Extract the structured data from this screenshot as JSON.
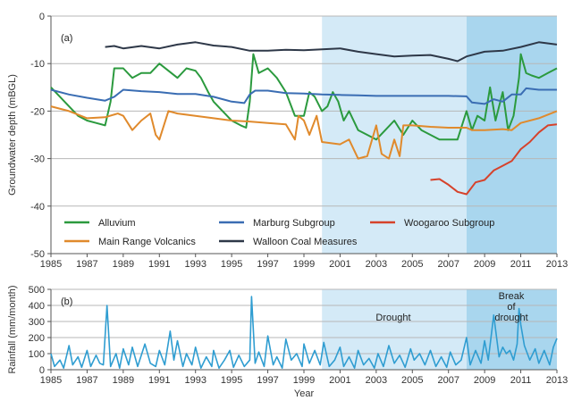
{
  "chart_data": [
    {
      "type": "line",
      "panel_label": "(a)",
      "ylabel": "Groundwater depth (mBGL)",
      "xlabel": "",
      "xlim": [
        1985,
        2013
      ],
      "ylim": [
        -50,
        0
      ],
      "x_ticks": [
        1985,
        1987,
        1989,
        1991,
        1993,
        1995,
        1997,
        1999,
        2001,
        2003,
        2005,
        2007,
        2009,
        2011,
        2013
      ],
      "y_ticks": [
        0,
        -10,
        -20,
        -30,
        -40,
        -50
      ],
      "grid": "horizontal",
      "legend_position": "bottom",
      "shaded_periods": [
        {
          "name": "drought",
          "start": 2000,
          "end": 2008,
          "color": "#d4eaf7"
        },
        {
          "name": "break-of-drought",
          "start": 2008,
          "end": 2013,
          "color": "#a9d6ee"
        }
      ],
      "series": [
        {
          "name": "Alluvium",
          "color": "#2b9a3e",
          "x": [
            1985,
            1985.5,
            1986,
            1986.5,
            1987,
            1987.5,
            1988,
            1988.3,
            1988.5,
            1989,
            1989.5,
            1990,
            1990.5,
            1991,
            1991.5,
            1992,
            1992.5,
            1993,
            1993.3,
            1993.7,
            1994,
            1994.5,
            1995,
            1995.5,
            1995.8,
            1996,
            1996.2,
            1996.5,
            1997,
            1997.5,
            1998,
            1998.5,
            1999,
            1999.3,
            1999.6,
            2000,
            2000.3,
            2000.6,
            2000.9,
            2001.2,
            2001.5,
            2002,
            2002.5,
            2003,
            2003.5,
            2004,
            2004.5,
            2005,
            2005.5,
            2006,
            2006.5,
            2007,
            2007.5,
            2008,
            2008.3,
            2008.6,
            2009,
            2009.3,
            2009.6,
            2010,
            2010.3,
            2010.6,
            2010.9,
            2011,
            2011.3,
            2011.6,
            2012,
            2012.5,
            2013
          ],
          "y": [
            -15,
            -17,
            -19,
            -21,
            -22,
            -22.5,
            -23,
            -18,
            -11,
            -11,
            -13,
            -12,
            -12,
            -10,
            -11.5,
            -13,
            -11,
            -11.5,
            -13,
            -16,
            -18,
            -20,
            -22,
            -23,
            -23.5,
            -18,
            -8,
            -12,
            -11,
            -13,
            -16,
            -21,
            -21,
            -16,
            -17,
            -20,
            -19,
            -16,
            -18,
            -22,
            -20,
            -24,
            -25,
            -26,
            -24,
            -22,
            -25,
            -22,
            -24,
            -25,
            -26,
            -26,
            -26,
            -20,
            -24,
            -21,
            -22,
            -15,
            -22,
            -16,
            -24,
            -21,
            -13,
            -8,
            -12,
            -12.5,
            -13,
            -12,
            -11
          ]
        },
        {
          "name": "Marburg Subgroup",
          "color": "#3a6db3",
          "x": [
            1985,
            1986,
            1987,
            1988,
            1988.5,
            1989,
            1990,
            1991,
            1992,
            1993,
            1994,
            1995,
            1995.7,
            1996,
            1996.3,
            1997,
            1998,
            1999,
            2000,
            2001,
            2002,
            2003,
            2004,
            2005,
            2006,
            2007,
            2008,
            2008.3,
            2009,
            2009.5,
            2010,
            2010.5,
            2011,
            2011.3,
            2012,
            2013
          ],
          "y": [
            -15.5,
            -16.5,
            -17.2,
            -17.8,
            -17,
            -15.5,
            -15.8,
            -16,
            -16.4,
            -16.4,
            -17,
            -18,
            -18.3,
            -16.5,
            -15.7,
            -15.7,
            -16.2,
            -16.3,
            -16.5,
            -16.6,
            -16.7,
            -16.8,
            -16.8,
            -16.8,
            -16.8,
            -16.8,
            -16.9,
            -18.2,
            -18.5,
            -17.5,
            -18,
            -16.5,
            -16.5,
            -15.2,
            -15.5,
            -15.5
          ]
        },
        {
          "name": "Woogaroo Subgroup",
          "color": "#d6422b",
          "x": [
            2006,
            2006.5,
            2007,
            2007.5,
            2008,
            2008.5,
            2009,
            2009.5,
            2010,
            2010.5,
            2011,
            2011.5,
            2012,
            2012.5,
            2013
          ],
          "y": [
            -34.5,
            -34.3,
            -35.5,
            -37,
            -37.5,
            -35,
            -34.5,
            -32.5,
            -31.5,
            -30.5,
            -28,
            -26.5,
            -24.5,
            -23,
            -22.8
          ]
        },
        {
          "name": "Main Range Volcanics",
          "color": "#e08a2c",
          "x": [
            1985,
            1986,
            1987,
            1988,
            1988.7,
            1989,
            1989.5,
            1990,
            1990.5,
            1990.8,
            1991,
            1991.5,
            1992,
            1993,
            1994,
            1995,
            1996,
            1997,
            1998,
            1998.5,
            1998.7,
            1999,
            1999.3,
            1999.7,
            2000,
            2001,
            2001.5,
            2002,
            2002.5,
            2003,
            2003.3,
            2003.7,
            2004,
            2004.3,
            2004.5,
            2005,
            2006,
            2007,
            2007.5,
            2008,
            2008.3,
            2009,
            2010,
            2010.5,
            2011,
            2012,
            2013
          ],
          "y": [
            -19,
            -20,
            -21.5,
            -21.3,
            -20.5,
            -21,
            -24,
            -22,
            -20.5,
            -25,
            -26,
            -20,
            -20.5,
            -21,
            -21.5,
            -22,
            -22.2,
            -22.5,
            -22.8,
            -26,
            -21,
            -22,
            -25,
            -21,
            -26.5,
            -27,
            -26,
            -30,
            -29.5,
            -23,
            -29,
            -30,
            -26,
            -29.5,
            -23,
            -23,
            -23.3,
            -23.5,
            -23.5,
            -23.5,
            -24,
            -24,
            -23.8,
            -24,
            -22.5,
            -21.5,
            -20
          ]
        },
        {
          "name": "Walloon Coal Measures",
          "color": "#2e3848",
          "x": [
            1988,
            1988.5,
            1989,
            1990,
            1991,
            1992,
            1993,
            1994,
            1995,
            1996,
            1997,
            1998,
            1999,
            2000,
            2001,
            2002,
            2003,
            2004,
            2005,
            2006,
            2007,
            2007.5,
            2008,
            2009,
            2010,
            2011,
            2012,
            2013
          ],
          "y": [
            -6.5,
            -6.3,
            -6.8,
            -6.3,
            -6.8,
            -6,
            -5.5,
            -6.2,
            -6.5,
            -7.3,
            -7.3,
            -7.1,
            -7.2,
            -7,
            -6.8,
            -7.5,
            -8,
            -8.5,
            -8.3,
            -8.2,
            -9,
            -9.5,
            -8.5,
            -7.5,
            -7.3,
            -6.5,
            -5.5,
            -6
          ]
        }
      ]
    },
    {
      "type": "line",
      "panel_label": "(b)",
      "ylabel": "Rainfall (mm/month)",
      "xlabel": "Year",
      "xlim": [
        1985,
        2013
      ],
      "ylim": [
        0,
        500
      ],
      "x_ticks": [
        1985,
        1987,
        1989,
        1991,
        1993,
        1995,
        1997,
        1999,
        2001,
        2003,
        2005,
        2007,
        2009,
        2011,
        2013
      ],
      "y_ticks": [
        0,
        100,
        200,
        300,
        400,
        500
      ],
      "grid": "horizontal",
      "annotations": [
        "Drought",
        "Break of drought"
      ],
      "shaded_periods": [
        {
          "name": "drought",
          "start": 2000,
          "end": 2008,
          "color": "#d4eaf7"
        },
        {
          "name": "break-of-drought",
          "start": 2008,
          "end": 2013,
          "color": "#a9d6ee"
        }
      ],
      "series": [
        {
          "name": "Rainfall",
          "color": "#2f9dd1",
          "x": [
            1985,
            1985.2,
            1985.5,
            1985.7,
            1986,
            1986.2,
            1986.5,
            1986.7,
            1987,
            1987.2,
            1987.5,
            1987.7,
            1987.9,
            1988.1,
            1988.3,
            1988.6,
            1988.8,
            1989,
            1989.3,
            1989.5,
            1989.8,
            1990,
            1990.2,
            1990.5,
            1990.8,
            1991,
            1991.3,
            1991.6,
            1991.8,
            1992,
            1992.3,
            1992.5,
            1992.8,
            1993,
            1993.3,
            1993.6,
            1993.9,
            1994,
            1994.3,
            1994.6,
            1994.9,
            1995.1,
            1995.4,
            1995.7,
            1996,
            1996.1,
            1996.3,
            1996.5,
            1996.8,
            1997,
            1997.3,
            1997.5,
            1997.8,
            1998,
            1998.3,
            1998.6,
            1998.9,
            1999,
            1999.3,
            1999.6,
            1999.9,
            2000.1,
            2000.4,
            2000.7,
            2001,
            2001.2,
            2001.5,
            2001.8,
            2002,
            2002.3,
            2002.6,
            2002.9,
            2003.1,
            2003.4,
            2003.7,
            2004,
            2004.3,
            2004.6,
            2004.9,
            2005.1,
            2005.4,
            2005.7,
            2006,
            2006.3,
            2006.6,
            2006.9,
            2007.1,
            2007.4,
            2007.7,
            2008,
            2008.2,
            2008.5,
            2008.8,
            2009,
            2009.2,
            2009.5,
            2009.8,
            2010,
            2010.2,
            2010.4,
            2010.6,
            2010.8,
            2010.9,
            2011,
            2011.2,
            2011.5,
            2011.8,
            2012,
            2012.3,
            2012.6,
            2012.8,
            2013
          ],
          "y": [
            100,
            20,
            60,
            10,
            150,
            30,
            80,
            15,
            120,
            20,
            90,
            40,
            30,
            400,
            20,
            100,
            10,
            130,
            30,
            140,
            20,
            90,
            160,
            40,
            20,
            120,
            30,
            240,
            60,
            180,
            20,
            100,
            30,
            140,
            10,
            80,
            20,
            120,
            10,
            60,
            120,
            15,
            90,
            20,
            60,
            455,
            40,
            110,
            20,
            210,
            30,
            80,
            10,
            190,
            60,
            100,
            20,
            160,
            40,
            120,
            30,
            170,
            20,
            60,
            140,
            20,
            80,
            10,
            120,
            30,
            70,
            10,
            100,
            20,
            150,
            40,
            90,
            15,
            130,
            60,
            100,
            30,
            120,
            20,
            80,
            15,
            110,
            30,
            60,
            200,
            30,
            120,
            40,
            180,
            60,
            340,
            80,
            140,
            100,
            120,
            60,
            160,
            380,
            280,
            150,
            60,
            130,
            40,
            120,
            30,
            140,
            195
          ]
        }
      ]
    }
  ]
}
